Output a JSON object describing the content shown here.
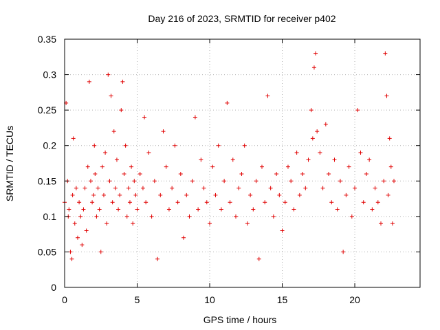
{
  "chart_data": {
    "type": "scatter",
    "title": "Day 216 of 2023, SRMTID for receiver p402",
    "xlabel": "GPS time / hours",
    "ylabel": "SRMTID / TECUs",
    "xlim": [
      0,
      24.5
    ],
    "ylim": [
      0,
      0.35
    ],
    "xticks": [
      0,
      5,
      10,
      15,
      20
    ],
    "yticks": [
      0,
      0.05,
      0.1,
      0.15,
      0.2,
      0.25,
      0.3,
      0.35
    ],
    "xtick_labels": [
      "0",
      "5",
      "10",
      "15",
      "20"
    ],
    "ytick_labels": [
      "0",
      "0.05",
      "0.1",
      "0.15",
      "0.2",
      "0.25",
      "0.3",
      "0.35"
    ],
    "grid": true,
    "marker": "+",
    "color": "#e00000",
    "series": [
      {
        "name": "SRMTID",
        "x": [
          0.0,
          0.1,
          0.2,
          0.25,
          0.3,
          0.4,
          0.5,
          0.55,
          0.6,
          0.7,
          0.8,
          0.9,
          1.0,
          1.1,
          1.2,
          1.3,
          1.4,
          1.5,
          1.6,
          1.7,
          1.8,
          1.9,
          2.0,
          2.05,
          2.1,
          2.2,
          2.3,
          2.4,
          2.5,
          2.6,
          2.7,
          2.8,
          2.9,
          3.0,
          3.1,
          3.2,
          3.3,
          3.4,
          3.5,
          3.6,
          3.7,
          3.8,
          3.9,
          4.0,
          4.1,
          4.2,
          4.3,
          4.4,
          4.5,
          4.6,
          4.7,
          4.8,
          4.9,
          5.0,
          5.2,
          5.4,
          5.5,
          5.6,
          5.8,
          6.0,
          6.2,
          6.4,
          6.6,
          6.8,
          7.0,
          7.2,
          7.4,
          7.6,
          7.8,
          8.0,
          8.2,
          8.4,
          8.6,
          8.8,
          9.0,
          9.2,
          9.4,
          9.6,
          9.8,
          10.0,
          10.2,
          10.4,
          10.6,
          10.8,
          11.0,
          11.2,
          11.4,
          11.6,
          11.8,
          12.0,
          12.2,
          12.4,
          12.6,
          12.8,
          13.0,
          13.2,
          13.4,
          13.6,
          13.8,
          14.0,
          14.2,
          14.4,
          14.6,
          14.8,
          15.0,
          15.2,
          15.4,
          15.6,
          15.8,
          16.0,
          16.2,
          16.4,
          16.6,
          16.8,
          17.0,
          17.1,
          17.2,
          17.3,
          17.4,
          17.6,
          17.8,
          18.0,
          18.2,
          18.4,
          18.6,
          18.8,
          19.0,
          19.2,
          19.4,
          19.6,
          19.8,
          20.0,
          20.2,
          20.4,
          20.6,
          20.8,
          21.0,
          21.2,
          21.4,
          21.6,
          21.8,
          22.0,
          22.1,
          22.2,
          22.3,
          22.4,
          22.5,
          22.6,
          22.7
        ],
        "y": [
          0.12,
          0.26,
          0.15,
          0.1,
          0.11,
          0.05,
          0.04,
          0.13,
          0.21,
          0.09,
          0.14,
          0.07,
          0.12,
          0.1,
          0.06,
          0.11,
          0.14,
          0.08,
          0.17,
          0.29,
          0.15,
          0.12,
          0.13,
          0.2,
          0.16,
          0.1,
          0.14,
          0.11,
          0.05,
          0.17,
          0.13,
          0.19,
          0.09,
          0.3,
          0.15,
          0.27,
          0.12,
          0.22,
          0.14,
          0.18,
          0.11,
          0.13,
          0.25,
          0.29,
          0.16,
          0.2,
          0.1,
          0.14,
          0.12,
          0.17,
          0.09,
          0.15,
          0.13,
          0.11,
          0.16,
          0.14,
          0.24,
          0.12,
          0.19,
          0.1,
          0.15,
          0.04,
          0.13,
          0.22,
          0.17,
          0.11,
          0.14,
          0.2,
          0.12,
          0.16,
          0.07,
          0.13,
          0.1,
          0.15,
          0.24,
          0.11,
          0.18,
          0.14,
          0.12,
          0.09,
          0.17,
          0.13,
          0.2,
          0.11,
          0.15,
          0.26,
          0.12,
          0.18,
          0.1,
          0.14,
          0.16,
          0.2,
          0.09,
          0.13,
          0.11,
          0.15,
          0.04,
          0.17,
          0.12,
          0.27,
          0.14,
          0.1,
          0.16,
          0.13,
          0.08,
          0.12,
          0.17,
          0.15,
          0.11,
          0.19,
          0.13,
          0.16,
          0.14,
          0.18,
          0.25,
          0.21,
          0.31,
          0.33,
          0.22,
          0.19,
          0.14,
          0.23,
          0.16,
          0.12,
          0.18,
          0.11,
          0.15,
          0.05,
          0.13,
          0.17,
          0.1,
          0.14,
          0.25,
          0.19,
          0.12,
          0.16,
          0.18,
          0.11,
          0.14,
          0.12,
          0.09,
          0.15,
          0.33,
          0.27,
          0.13,
          0.21,
          0.17,
          0.09,
          0.15
        ]
      }
    ]
  }
}
